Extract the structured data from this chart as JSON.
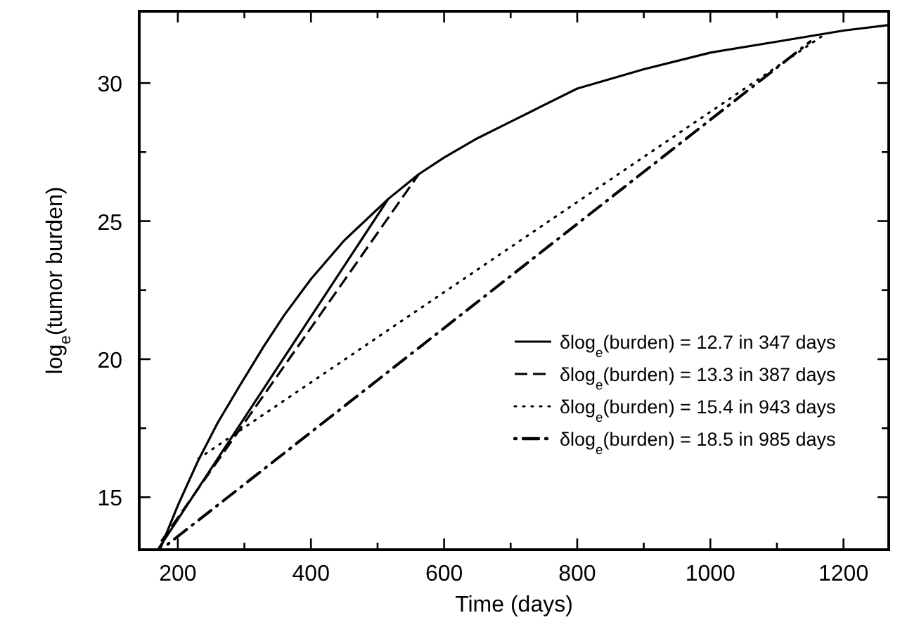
{
  "chart_data": {
    "type": "line",
    "xlabel": "Time (days)",
    "ylabel": "log$_{e}$(tumor burden)",
    "xlim": [
      142,
      1268
    ],
    "ylim": [
      13.1,
      32.6
    ],
    "xticks": [
      200,
      {
        "value": 300,
        "label": null
      },
      400,
      {
        "value": 500,
        "label": null
      },
      600,
      {
        "value": 700,
        "label": null
      },
      800,
      {
        "value": 900,
        "label": null
      },
      1000,
      {
        "value": 1100,
        "label": null
      },
      1200
    ],
    "yticks": [
      15,
      {
        "value": 17.5,
        "label": null
      },
      20,
      {
        "value": 22.5,
        "label": null
      },
      25,
      {
        "value": 27.5,
        "label": null
      },
      30
    ],
    "grid": false,
    "legend": "right",
    "marker": "none",
    "series": [
      {
        "color": "#000000",
        "line_style": "solid",
        "x": [
          173,
          200,
          230,
          260,
          292,
          330,
          360,
          400,
          450,
          516,
          562,
          600,
          650,
          700,
          800,
          900,
          1000,
          1100,
          1200,
          1268
        ],
        "values": [
          13.1,
          14.7,
          16.3,
          17.7,
          19.0,
          20.5,
          21.6,
          22.9,
          24.3,
          25.8,
          26.7,
          27.3,
          28.0,
          28.6,
          29.8,
          30.5,
          31.1,
          31.5,
          31.9,
          32.1
        ]
      },
      {
        "name": "δlog$_{e}$(burden) = 12.7 in 347 days",
        "color": "#000000",
        "line_style": "solid",
        "x": [
          170,
          516
        ],
        "values": [
          13.1,
          25.8
        ]
      },
      {
        "name": "δlog$_{e}$(burden) = 13.3 in 387 days",
        "color": "#000000",
        "line_style": "dashed",
        "x": [
          175,
          562
        ],
        "values": [
          13.4,
          26.7
        ]
      },
      {
        "name": "δlog$_{e}$(burden) = 15.4 in 943 days",
        "color": "#000000",
        "line_style": "dotted",
        "x": [
          231,
          1174
        ],
        "values": [
          16.4,
          31.8
        ]
      },
      {
        "name": "δlog$_{e}$(burden) = 18.5 in 985 days",
        "color": "#000000",
        "line_style": "dashdot",
        "x": [
          185,
          1150
        ],
        "values": [
          13.3,
          31.5
        ]
      }
    ]
  }
}
